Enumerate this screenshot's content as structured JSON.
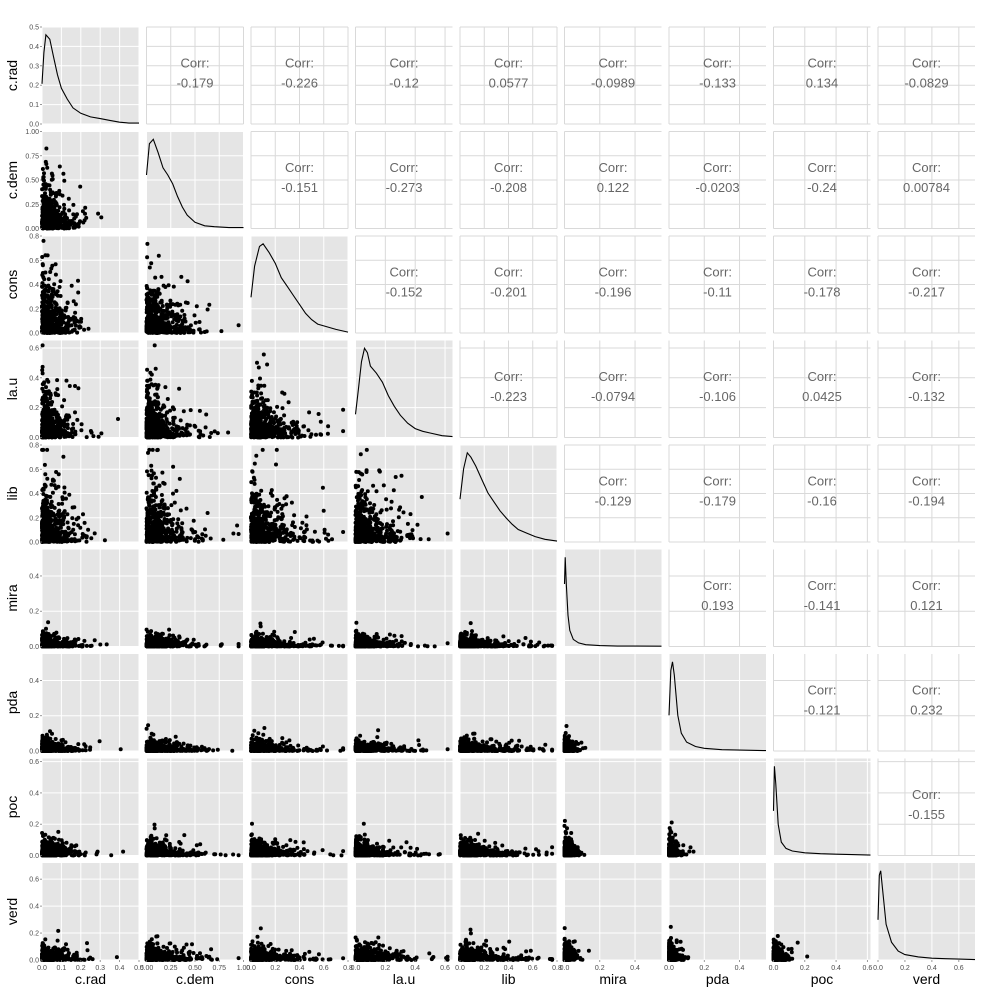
{
  "chart_data": {
    "type": "scatterplot-matrix",
    "variables": [
      "c.rad",
      "c.dem",
      "cons",
      "la.u",
      "lib",
      "mira",
      "pda",
      "poc",
      "verd"
    ],
    "corr_label": "Corr:",
    "correlations": [
      {
        "row": "c.rad",
        "col": "c.dem",
        "value": "-0.179"
      },
      {
        "row": "c.rad",
        "col": "cons",
        "value": "-0.226"
      },
      {
        "row": "c.rad",
        "col": "la.u",
        "value": "-0.12"
      },
      {
        "row": "c.rad",
        "col": "lib",
        "value": "0.0577"
      },
      {
        "row": "c.rad",
        "col": "mira",
        "value": "-0.0989"
      },
      {
        "row": "c.rad",
        "col": "pda",
        "value": "-0.133"
      },
      {
        "row": "c.rad",
        "col": "poc",
        "value": "0.134"
      },
      {
        "row": "c.rad",
        "col": "verd",
        "value": "-0.0829"
      },
      {
        "row": "c.dem",
        "col": "cons",
        "value": "-0.151"
      },
      {
        "row": "c.dem",
        "col": "la.u",
        "value": "-0.273"
      },
      {
        "row": "c.dem",
        "col": "lib",
        "value": "-0.208"
      },
      {
        "row": "c.dem",
        "col": "mira",
        "value": "0.122"
      },
      {
        "row": "c.dem",
        "col": "pda",
        "value": "-0.0203"
      },
      {
        "row": "c.dem",
        "col": "poc",
        "value": "-0.24"
      },
      {
        "row": "c.dem",
        "col": "verd",
        "value": "0.00784"
      },
      {
        "row": "cons",
        "col": "la.u",
        "value": "-0.152"
      },
      {
        "row": "cons",
        "col": "lib",
        "value": "-0.201"
      },
      {
        "row": "cons",
        "col": "mira",
        "value": "-0.196"
      },
      {
        "row": "cons",
        "col": "pda",
        "value": "-0.11"
      },
      {
        "row": "cons",
        "col": "poc",
        "value": "-0.178"
      },
      {
        "row": "cons",
        "col": "verd",
        "value": "-0.217"
      },
      {
        "row": "la.u",
        "col": "lib",
        "value": "-0.223"
      },
      {
        "row": "la.u",
        "col": "mira",
        "value": "-0.0794"
      },
      {
        "row": "la.u",
        "col": "pda",
        "value": "-0.106"
      },
      {
        "row": "la.u",
        "col": "poc",
        "value": "0.0425"
      },
      {
        "row": "la.u",
        "col": "verd",
        "value": "-0.132"
      },
      {
        "row": "lib",
        "col": "mira",
        "value": "-0.129"
      },
      {
        "row": "lib",
        "col": "pda",
        "value": "-0.179"
      },
      {
        "row": "lib",
        "col": "poc",
        "value": "-0.16"
      },
      {
        "row": "lib",
        "col": "verd",
        "value": "-0.194"
      },
      {
        "row": "mira",
        "col": "pda",
        "value": "0.193"
      },
      {
        "row": "mira",
        "col": "poc",
        "value": "-0.141"
      },
      {
        "row": "mira",
        "col": "verd",
        "value": "0.121"
      },
      {
        "row": "pda",
        "col": "poc",
        "value": "-0.121"
      },
      {
        "row": "pda",
        "col": "verd",
        "value": "0.232"
      },
      {
        "row": "poc",
        "col": "verd",
        "value": "-0.155"
      }
    ],
    "ranges": {
      "c.rad": [
        0,
        0.5
      ],
      "c.dem": [
        0,
        1.0
      ],
      "cons": [
        0,
        0.8
      ],
      "la.u": [
        0,
        0.65
      ],
      "lib": [
        0,
        0.8
      ],
      "mira": [
        0,
        0.55
      ],
      "pda": [
        0,
        0.55
      ],
      "poc": [
        0,
        0.62
      ],
      "verd": [
        0,
        0.72
      ]
    },
    "x_ticks": {
      "c.rad": [
        "0.0",
        "0.1",
        "0.2",
        "0.3",
        "0.4",
        "0.5"
      ],
      "c.dem": [
        "0.00",
        "0.25",
        "0.50",
        "0.75",
        "1.00"
      ],
      "cons": [
        "0.0",
        "0.2",
        "0.4",
        "0.6",
        "0.8"
      ],
      "la.u": [
        "0.0",
        "0.2",
        "0.4",
        "0.6"
      ],
      "lib": [
        "0.0",
        "0.2",
        "0.4",
        "0.6",
        "0.8"
      ],
      "mira": [
        "0.0",
        "0.2",
        "0.4"
      ],
      "pda": [
        "0.0",
        "0.2",
        "0.4"
      ],
      "poc": [
        "0.0",
        "0.2",
        "0.4",
        "0.6"
      ],
      "verd": [
        "0.0",
        "0.2",
        "0.4",
        "0.6"
      ]
    },
    "y_ticks": {
      "c.rad": [
        "0.0",
        "0.1",
        "0.2",
        "0.3",
        "0.4",
        "0.5"
      ],
      "c.dem": [
        "0.00",
        "0.25",
        "0.50",
        "0.75",
        "1.00"
      ],
      "cons": [
        "0.0",
        "0.2",
        "0.4",
        "0.6",
        "0.8"
      ],
      "la.u": [
        "0.0",
        "0.2",
        "0.4",
        "0.6"
      ],
      "lib": [
        "0.0",
        "0.2",
        "0.4",
        "0.6",
        "0.8"
      ],
      "mira": [
        "0.0",
        "0.2",
        "0.4"
      ],
      "pda": [
        "0.0",
        "0.2",
        "0.4"
      ],
      "poc": [
        "0.0",
        "0.2",
        "0.4",
        "0.6"
      ],
      "verd": [
        "0.0",
        "0.2",
        "0.4",
        "0.6"
      ]
    },
    "density_shapes": {
      "c.rad": [
        [
          0,
          0.45
        ],
        [
          0.01,
          0.8
        ],
        [
          0.02,
          1.0
        ],
        [
          0.04,
          0.95
        ],
        [
          0.06,
          0.75
        ],
        [
          0.08,
          0.55
        ],
        [
          0.1,
          0.4
        ],
        [
          0.13,
          0.28
        ],
        [
          0.16,
          0.18
        ],
        [
          0.2,
          0.12
        ],
        [
          0.25,
          0.08
        ],
        [
          0.3,
          0.06
        ],
        [
          0.35,
          0.04
        ],
        [
          0.4,
          0.02
        ],
        [
          0.45,
          0.01
        ],
        [
          0.5,
          0.01
        ]
      ],
      "c.dem": [
        [
          0,
          0.6
        ],
        [
          0.03,
          0.95
        ],
        [
          0.07,
          1.0
        ],
        [
          0.12,
          0.85
        ],
        [
          0.17,
          0.68
        ],
        [
          0.22,
          0.6
        ],
        [
          0.27,
          0.5
        ],
        [
          0.32,
          0.36
        ],
        [
          0.37,
          0.24
        ],
        [
          0.42,
          0.15
        ],
        [
          0.5,
          0.07
        ],
        [
          0.6,
          0.03
        ],
        [
          0.7,
          0.02
        ],
        [
          0.85,
          0.01
        ],
        [
          1.0,
          0.01
        ]
      ],
      "cons": [
        [
          0,
          0.4
        ],
        [
          0.03,
          0.75
        ],
        [
          0.07,
          0.97
        ],
        [
          0.1,
          1.0
        ],
        [
          0.15,
          0.9
        ],
        [
          0.2,
          0.78
        ],
        [
          0.25,
          0.62
        ],
        [
          0.3,
          0.52
        ],
        [
          0.35,
          0.42
        ],
        [
          0.4,
          0.32
        ],
        [
          0.45,
          0.22
        ],
        [
          0.5,
          0.15
        ],
        [
          0.55,
          0.1
        ],
        [
          0.6,
          0.08
        ],
        [
          0.7,
          0.04
        ],
        [
          0.8,
          0.01
        ]
      ],
      "la.u": [
        [
          0,
          0.26
        ],
        [
          0.02,
          0.55
        ],
        [
          0.04,
          0.85
        ],
        [
          0.06,
          1.0
        ],
        [
          0.08,
          0.95
        ],
        [
          0.1,
          0.8
        ],
        [
          0.14,
          0.72
        ],
        [
          0.18,
          0.62
        ],
        [
          0.22,
          0.47
        ],
        [
          0.26,
          0.35
        ],
        [
          0.3,
          0.25
        ],
        [
          0.35,
          0.16
        ],
        [
          0.4,
          0.1
        ],
        [
          0.45,
          0.07
        ],
        [
          0.5,
          0.05
        ],
        [
          0.58,
          0.02
        ],
        [
          0.65,
          0.01
        ]
      ],
      "lib": [
        [
          0,
          0.48
        ],
        [
          0.03,
          0.82
        ],
        [
          0.06,
          1.0
        ],
        [
          0.09,
          0.95
        ],
        [
          0.13,
          0.85
        ],
        [
          0.18,
          0.7
        ],
        [
          0.23,
          0.55
        ],
        [
          0.28,
          0.45
        ],
        [
          0.33,
          0.35
        ],
        [
          0.38,
          0.27
        ],
        [
          0.43,
          0.2
        ],
        [
          0.48,
          0.14
        ],
        [
          0.55,
          0.1
        ],
        [
          0.62,
          0.06
        ],
        [
          0.7,
          0.03
        ],
        [
          0.8,
          0.01
        ]
      ],
      "mira": [
        [
          0,
          0.7
        ],
        [
          0.004,
          1.0
        ],
        [
          0.01,
          0.7
        ],
        [
          0.02,
          0.35
        ],
        [
          0.03,
          0.18
        ],
        [
          0.05,
          0.08
        ],
        [
          0.08,
          0.04
        ],
        [
          0.12,
          0.02
        ],
        [
          0.2,
          0.01
        ],
        [
          0.3,
          0.005
        ],
        [
          0.4,
          0.005
        ],
        [
          0.55,
          0.003
        ]
      ],
      "pda": [
        [
          0,
          0.4
        ],
        [
          0.01,
          0.9
        ],
        [
          0.02,
          1.0
        ],
        [
          0.03,
          0.85
        ],
        [
          0.05,
          0.4
        ],
        [
          0.07,
          0.2
        ],
        [
          0.1,
          0.1
        ],
        [
          0.15,
          0.05
        ],
        [
          0.2,
          0.03
        ],
        [
          0.3,
          0.015
        ],
        [
          0.4,
          0.01
        ],
        [
          0.55,
          0.005
        ]
      ],
      "poc": [
        [
          0,
          0.5
        ],
        [
          0.006,
          1.0
        ],
        [
          0.015,
          0.8
        ],
        [
          0.03,
          0.35
        ],
        [
          0.05,
          0.15
        ],
        [
          0.08,
          0.08
        ],
        [
          0.12,
          0.05
        ],
        [
          0.2,
          0.03
        ],
        [
          0.3,
          0.02
        ],
        [
          0.4,
          0.015
        ],
        [
          0.5,
          0.01
        ],
        [
          0.62,
          0.005
        ]
      ],
      "verd": [
        [
          0,
          0.45
        ],
        [
          0.01,
          0.95
        ],
        [
          0.02,
          1.0
        ],
        [
          0.04,
          0.7
        ],
        [
          0.06,
          0.4
        ],
        [
          0.1,
          0.2
        ],
        [
          0.15,
          0.1
        ],
        [
          0.2,
          0.06
        ],
        [
          0.3,
          0.035
        ],
        [
          0.4,
          0.02
        ],
        [
          0.5,
          0.015
        ],
        [
          0.6,
          0.01
        ],
        [
          0.72,
          0.005
        ]
      ]
    },
    "scatter_shape": {
      "c.rad": {
        "decay": 0.1,
        "spread": 0.7
      },
      "c.dem": {
        "decay": 0.14,
        "spread": 0.65
      },
      "cons": {
        "decay": 0.16,
        "spread": 0.7
      },
      "la.u": {
        "decay": 0.14,
        "spread": 0.7
      },
      "lib": {
        "decay": 0.18,
        "spread": 0.7
      },
      "mira": {
        "decay": 0.03,
        "spread": 0.8
      },
      "pda": {
        "decay": 0.03,
        "spread": 0.8
      },
      "poc": {
        "decay": 0.04,
        "spread": 0.8
      },
      "verd": {
        "decay": 0.04,
        "spread": 0.8
      }
    },
    "colors": {
      "panel_background": "#e5e5e5",
      "grid": "#ffffff",
      "upper_grid": "#d9d9d9",
      "point": "#000000",
      "line": "#000000",
      "corr_text": "#666666"
    },
    "points_per_panel": 520,
    "grid": true
  }
}
